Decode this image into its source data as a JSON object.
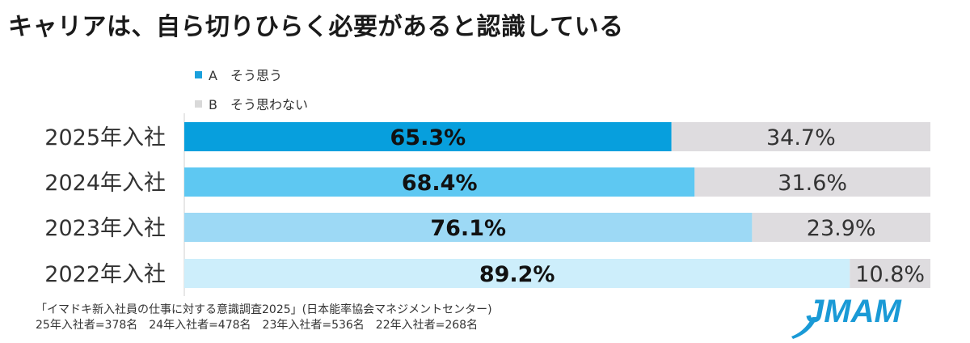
{
  "title": "キャリアは、自ら切りひらく必要があると認識している",
  "legend": [
    {
      "label": "A　そう思う",
      "color": "#1aa0dc"
    },
    {
      "label": "B　そう思わない",
      "color": "#d9d9d9"
    }
  ],
  "chart_data": {
    "type": "bar",
    "orientation": "horizontal",
    "stacked": true,
    "categories": [
      "2025年入社",
      "2024年入社",
      "2023年入社",
      "2022年入社"
    ],
    "series": [
      {
        "name": "A　そう思う",
        "values": [
          65.3,
          68.4,
          76.1,
          89.2
        ],
        "labels": [
          "65.3%",
          "68.4%",
          "76.1%",
          "89.2%"
        ],
        "colors": [
          "#079fdd",
          "#5ec8f2",
          "#9dd9f5",
          "#cdeefb"
        ]
      },
      {
        "name": "B　そう思わない",
        "values": [
          34.7,
          31.6,
          23.9,
          10.8
        ],
        "labels": [
          "34.7%",
          "31.6%",
          "23.9%",
          "10.8%"
        ],
        "color": "#dedcdf"
      }
    ],
    "xlim": [
      0,
      100
    ],
    "grid": false,
    "legend_position": "top-left"
  },
  "footnote": {
    "line1": "「イマドキ新入社員の仕事に対する意識調査2025」(日本能率協会マネジメントセンター)",
    "line2": "25年入社者=378名　24年入社者=478名　23年入社者=536名　22年入社者=268名"
  },
  "logo": {
    "text": "JMAM",
    "color": "#1a9ad6"
  }
}
